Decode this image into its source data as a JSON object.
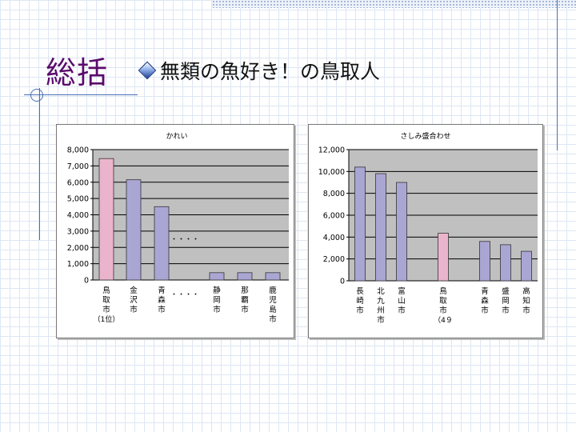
{
  "slide": {
    "title": "総括",
    "subtitle": "無類の魚好き！の鳥取人"
  },
  "chart_data": [
    {
      "type": "bar",
      "title": "かれい",
      "categories": [
        "鳥取市",
        "金沢市",
        "青森市",
        "静岡市",
        "那覇市",
        "鹿児島市"
      ],
      "category_notes": [
        "（1位）",
        "",
        "",
        "",
        "",
        ""
      ],
      "values": [
        7450,
        6150,
        4500,
        450,
        450,
        450
      ],
      "highlight_index": 0,
      "ellipsis": "・・・・",
      "gap_after_index": 2,
      "yticks": [
        "0",
        "1,000",
        "2,000",
        "3,000",
        "4,000",
        "5,000",
        "6,000",
        "7,000",
        "8,000"
      ],
      "ylim": [
        0,
        8000
      ],
      "colors": {
        "bar": "#aaa6d4",
        "highlight": "#eab5cc",
        "plot_bg": "#c0c0c0"
      }
    },
    {
      "type": "bar",
      "title": "さしみ盛合わせ",
      "categories": [
        "長崎市",
        "北九州市",
        "富山市",
        "鳥取市",
        "青森市",
        "盛岡市",
        "高知市"
      ],
      "category_notes": [
        "",
        "",
        "",
        "（4９",
        "",
        "",
        ""
      ],
      "values": [
        10400,
        9800,
        9000,
        4350,
        3600,
        3300,
        2700
      ],
      "highlight_index": 3,
      "yticks": [
        "0",
        "2,000",
        "4,000",
        "6,000",
        "8,000",
        "10,000",
        "12,000"
      ],
      "ylim": [
        0,
        12000
      ],
      "colors": {
        "bar": "#aaa6d4",
        "highlight": "#eab5cc",
        "plot_bg": "#c0c0c0"
      }
    }
  ]
}
